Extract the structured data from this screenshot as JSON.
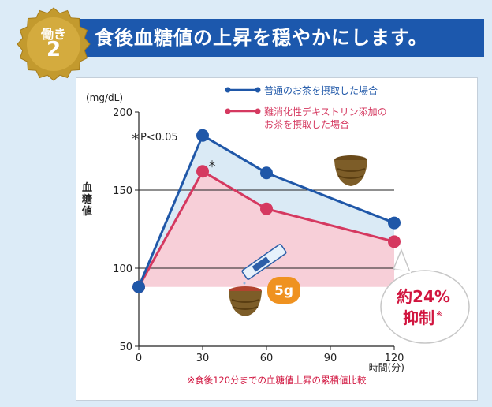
{
  "header": {
    "badge_top": "働き",
    "badge_number": "2",
    "title": "食後血糖値の上昇を穏やかにします。"
  },
  "chart_data": {
    "type": "line",
    "ylabel": "血糖値",
    "yunit": "(mg/dL)",
    "xlabel": "時間(分)",
    "x": [
      0,
      30,
      60,
      90,
      120
    ],
    "xticks": [
      "0",
      "30",
      "60",
      "90",
      "120"
    ],
    "yticks": [
      "50",
      "100",
      "150",
      "200"
    ],
    "ylim": [
      50,
      200
    ],
    "xlim": [
      0,
      120
    ],
    "grid_lines": [
      100,
      150
    ],
    "series": [
      {
        "name": "普通のお茶を摂取した場合",
        "color": "#1f57a8",
        "points": [
          [
            0,
            88
          ],
          [
            30,
            185
          ],
          [
            60,
            161
          ],
          [
            120,
            129
          ]
        ]
      },
      {
        "name": "難消化性デキストリン添加のお茶を摂取した場合",
        "legend_lines": [
          "難消化性デキストリン添加の",
          "お茶を摂取した場合"
        ],
        "color": "#d53960",
        "points": [
          [
            0,
            88
          ],
          [
            30,
            162
          ],
          [
            60,
            138
          ],
          [
            120,
            117
          ]
        ]
      }
    ],
    "significance_note": "＊P<0.05",
    "significance_mark": "＊",
    "dose_label": "5g",
    "callout_line1": "約24%",
    "callout_line2": "抑制",
    "callout_mark": "※",
    "footnote": "※食後120分までの血糖値上昇の累積値比較",
    "area_fill_colors": {
      "upper": "#daeaf5",
      "lower": "#f7cfd8"
    },
    "dose_badge_color": "#ef9220",
    "callout_text_color": "#d1153f"
  }
}
